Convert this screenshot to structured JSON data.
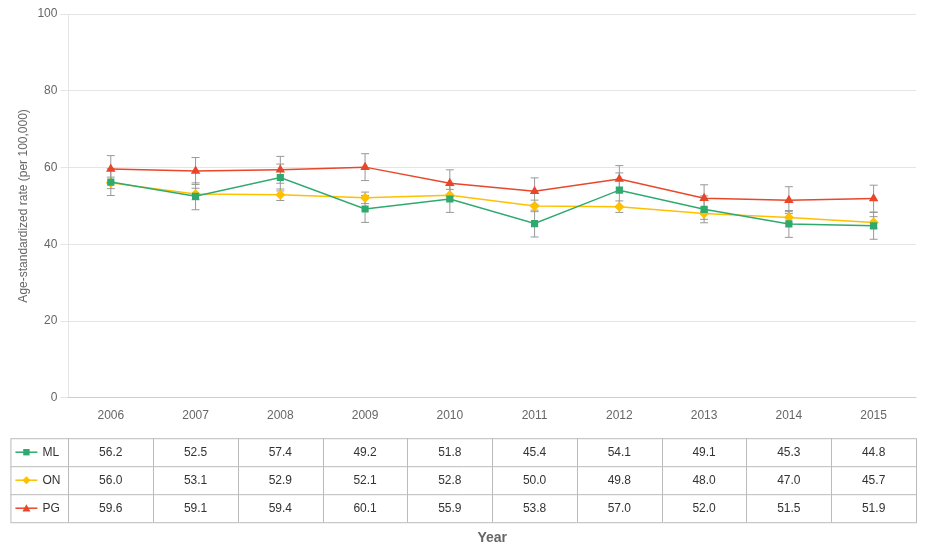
{
  "chart_data": {
    "type": "line",
    "x": [
      2006,
      2007,
      2008,
      2009,
      2010,
      2011,
      2012,
      2013,
      2014,
      2015
    ],
    "xlabel": "Year",
    "ylabel": "Age-standardized rate (per 100,000)",
    "xlim": [
      2005.5,
      2015.5
    ],
    "xticks": [
      2006,
      2007,
      2008,
      2009,
      2010,
      2011,
      2012,
      2013,
      2014,
      2015
    ],
    "ylim": [
      0,
      100
    ],
    "yticks": [
      0,
      20,
      40,
      60,
      80,
      100
    ],
    "grid": "y",
    "series": [
      {
        "name": "ML",
        "color": "#2EAA6E",
        "marker": "square",
        "values": [
          56.2,
          52.5,
          57.4,
          49.2,
          51.8,
          45.4,
          54.1,
          49.1,
          45.3,
          44.8
        ],
        "errors": [
          3.5,
          3.5,
          3.5,
          3.5,
          3.5,
          3.5,
          4.5,
          3.5,
          3.5,
          3.5
        ],
        "value_labels": [
          "56.2",
          "52.5",
          "57.4",
          "49.2",
          "51.8",
          "45.4",
          "54.1",
          "49.1",
          "45.3",
          "44.8"
        ]
      },
      {
        "name": "ON",
        "color": "#FFC000",
        "marker": "diamond",
        "values": [
          56.0,
          53.1,
          52.9,
          52.1,
          52.8,
          50.0,
          49.8,
          48.0,
          47.0,
          45.7
        ],
        "errors": [
          1.5,
          1.5,
          1.5,
          1.5,
          1.5,
          1.5,
          1.5,
          1.5,
          1.5,
          1.5
        ],
        "value_labels": [
          "56.0",
          "53.1",
          "52.9",
          "52.1",
          "52.8",
          "50.0",
          "49.8",
          "48.0",
          "47.0",
          "45.7"
        ]
      },
      {
        "name": "PG",
        "color": "#E8472A",
        "marker": "triangle",
        "values": [
          59.6,
          59.1,
          59.4,
          60.1,
          55.9,
          53.8,
          57.0,
          52.0,
          51.5,
          51.9
        ],
        "errors": [
          3.5,
          3.5,
          3.5,
          3.5,
          3.5,
          3.5,
          3.5,
          3.5,
          3.5,
          3.5
        ],
        "value_labels": [
          "59.6",
          "59.1",
          "59.4",
          "60.1",
          "55.9",
          "53.8",
          "57.0",
          "52.0",
          "51.5",
          "51.9"
        ]
      }
    ]
  }
}
